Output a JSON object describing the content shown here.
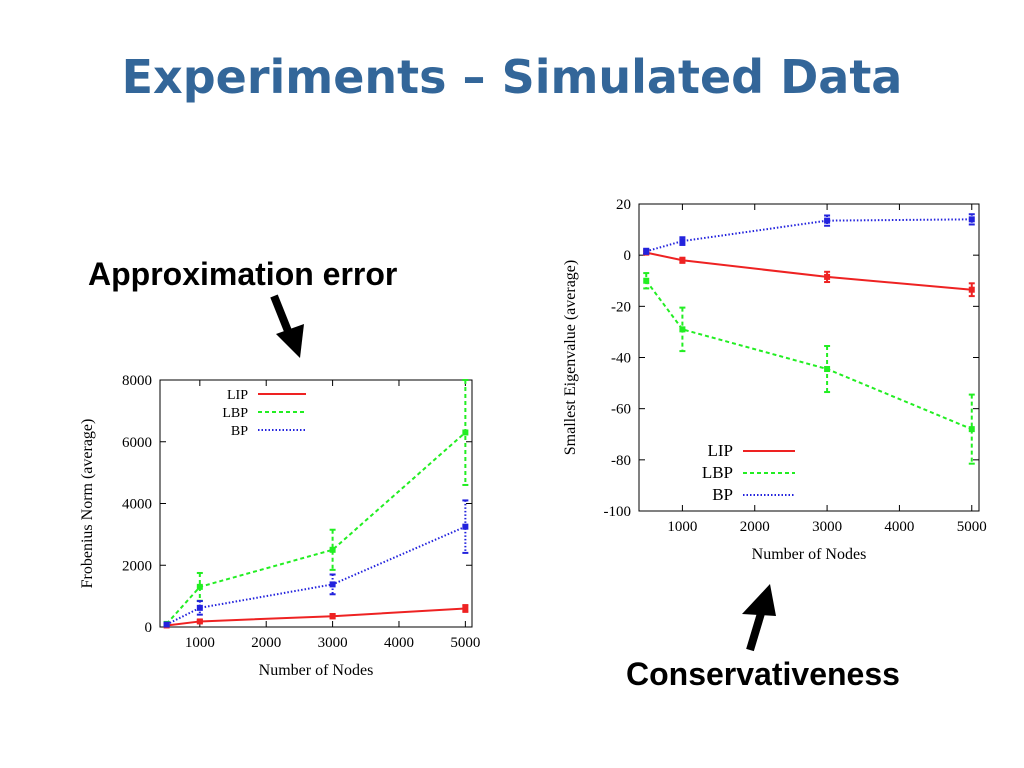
{
  "slide": {
    "title": "Experiments – Simulated Data",
    "callout_left": "Approximation error",
    "callout_right": "Conservativeness"
  },
  "chart_data": [
    {
      "type": "line",
      "xlabel": "Number of Nodes",
      "ylabel": "Frobenius Norm (average)",
      "xlim": [
        400,
        5100
      ],
      "ylim": [
        0,
        8000
      ],
      "xticks": [
        1000,
        2000,
        3000,
        4000,
        5000
      ],
      "yticks": [
        0,
        2000,
        4000,
        6000,
        8000
      ],
      "legend_position": "top-left",
      "x": [
        500,
        1000,
        3000,
        5000
      ],
      "series": [
        {
          "name": "LIP",
          "color": "#ee2222",
          "dash": "solid",
          "values": [
            50,
            180,
            350,
            600
          ],
          "err": [
            20,
            40,
            70,
            110
          ]
        },
        {
          "name": "LBP",
          "color": "#22ee22",
          "dash": "dashed",
          "values": [
            100,
            1300,
            2500,
            6300
          ],
          "err": [
            60,
            450,
            650,
            1700
          ]
        },
        {
          "name": "BP",
          "color": "#2222dd",
          "dash": "dotted",
          "values": [
            80,
            620,
            1380,
            3250
          ],
          "err": [
            40,
            220,
            320,
            850
          ]
        }
      ]
    },
    {
      "type": "line",
      "xlabel": "Number of Nodes",
      "ylabel": "Smallest Eigenvalue (average)",
      "xlim": [
        400,
        5100
      ],
      "ylim": [
        -100,
        20
      ],
      "xticks": [
        1000,
        2000,
        3000,
        4000,
        5000
      ],
      "yticks": [
        20,
        0,
        -20,
        -40,
        -60,
        -80,
        -100
      ],
      "legend_position": "bottom-left",
      "x": [
        500,
        1000,
        3000,
        5000
      ],
      "series": [
        {
          "name": "LIP",
          "color": "#ee2222",
          "dash": "solid",
          "values": [
            1,
            -2,
            -8.5,
            -13.5
          ],
          "err": [
            0.6,
            1,
            2,
            2.5
          ]
        },
        {
          "name": "LBP",
          "color": "#22ee22",
          "dash": "dashed",
          "values": [
            -10,
            -29,
            -44.5,
            -68
          ],
          "err": [
            3,
            8.5,
            9,
            13.5
          ]
        },
        {
          "name": "BP",
          "color": "#2222dd",
          "dash": "dotted",
          "values": [
            1.5,
            5.5,
            13.5,
            14
          ],
          "err": [
            1,
            1.5,
            2,
            2
          ]
        }
      ]
    }
  ]
}
